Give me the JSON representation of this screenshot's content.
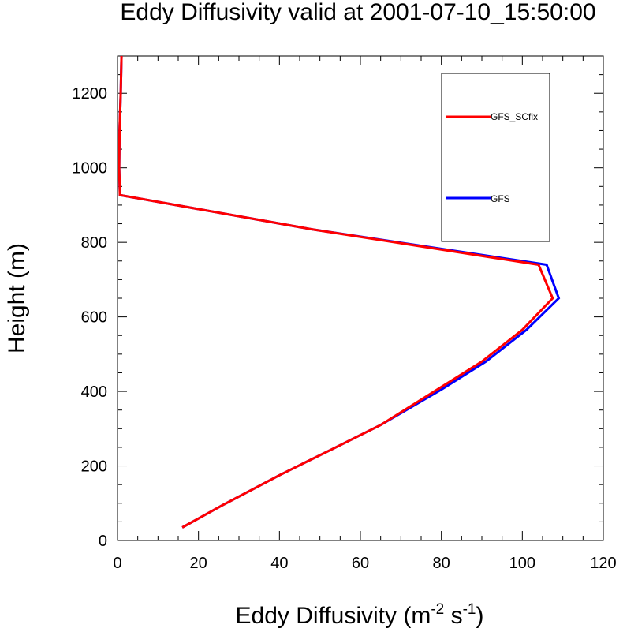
{
  "chart_data": {
    "type": "line",
    "title": "Eddy Diffusivity valid at 2001-07-10_15:50:00",
    "xlabel": "Eddy Diffusivity (m",
    "xlabel_sup1": "-2",
    "xlabel_mid": " s",
    "xlabel_sup2": "-1",
    "xlabel_end": ")",
    "ylabel": "Height (m)",
    "xlim": [
      0,
      120
    ],
    "ylim": [
      0,
      1300
    ],
    "xticks": [
      0,
      20,
      40,
      60,
      80,
      100,
      120
    ],
    "yticks": [
      0,
      200,
      400,
      600,
      800,
      1000,
      1200
    ],
    "xtick_labels": [
      "0",
      "20",
      "40",
      "60",
      "80",
      "100",
      "120"
    ],
    "ytick_labels": [
      "0",
      "200",
      "400",
      "600",
      "800",
      "1000",
      "1200"
    ],
    "legend_position": "top-right",
    "series": [
      {
        "name": "GFS",
        "color": "#0000ff",
        "points": [
          [
            16,
            35
          ],
          [
            26,
            95
          ],
          [
            40,
            175
          ],
          [
            53,
            245
          ],
          [
            65,
            310
          ],
          [
            80,
            405
          ],
          [
            91,
            480
          ],
          [
            101,
            565
          ],
          [
            109,
            650
          ],
          [
            106,
            740
          ],
          [
            48,
            835
          ],
          [
            0.6,
            927
          ],
          [
            0.4,
            1000
          ],
          [
            0.5,
            1100
          ],
          [
            0.8,
            1200
          ],
          [
            1.0,
            1300
          ]
        ]
      },
      {
        "name": "GFS_SCfix",
        "color": "#ff0000",
        "points": [
          [
            16,
            35
          ],
          [
            26,
            95
          ],
          [
            40,
            175
          ],
          [
            53,
            245
          ],
          [
            65,
            310
          ],
          [
            79,
            405
          ],
          [
            90,
            480
          ],
          [
            100,
            565
          ],
          [
            107.5,
            650
          ],
          [
            104,
            740
          ],
          [
            48,
            835
          ],
          [
            0.6,
            927
          ],
          [
            0.4,
            1000
          ],
          [
            0.5,
            1100
          ],
          [
            0.8,
            1200
          ],
          [
            1.0,
            1300
          ]
        ]
      }
    ]
  }
}
